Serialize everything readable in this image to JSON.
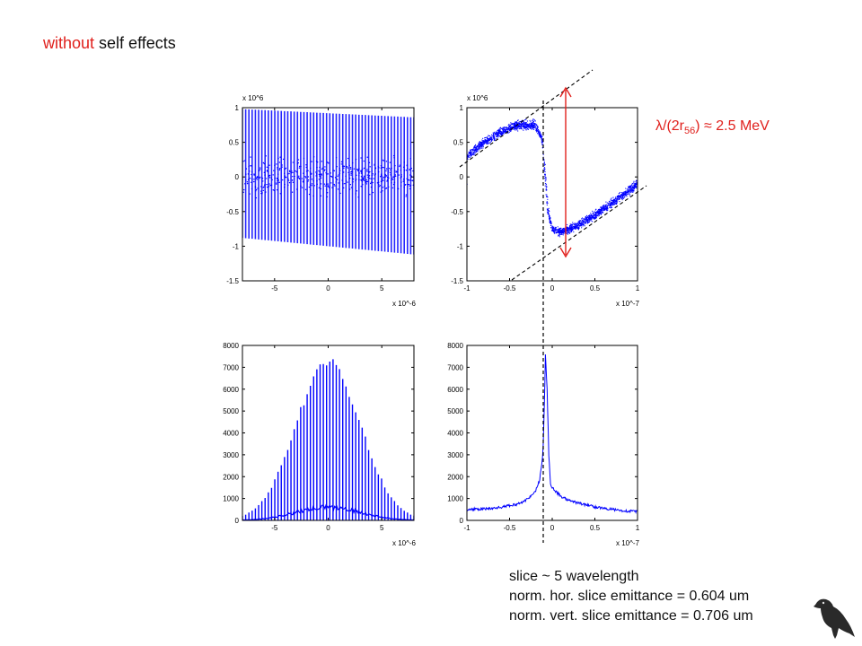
{
  "title": {
    "prefix": "without",
    "rest": " self effects"
  },
  "annotation": {
    "text_a": "λ/(2r",
    "sub": "56",
    "text_b": ") ≈ 2.5 MeV"
  },
  "notes": [
    "slice ~ 5 wavelength",
    "norm. hor. slice emittance = 0.604 um",
    "norm. vert. slice emittance = 0.706 um"
  ],
  "colors": {
    "accent": "#e0211d",
    "series": "#0000ff",
    "axes": "#000000"
  },
  "icon": "crow-icon",
  "chart_data": [
    {
      "type": "scatter",
      "description_id": "top-left",
      "xlim": [
        -8,
        8
      ],
      "x_multiplier": "x 10^-6",
      "ylim": [
        -1.5,
        1.0
      ],
      "y_multiplier": "x 10^6",
      "xticks": [
        "-5",
        "0",
        "5"
      ],
      "yticks": [
        "1",
        "0.5",
        "0",
        "-0.5",
        "-1",
        "-1.5"
      ],
      "xtick_vals": [
        -5,
        0,
        5
      ],
      "ytick_vals": [
        1,
        0.5,
        0,
        -0.5,
        -1,
        -1.5
      ],
      "series": [
        {
          "comb_lines": 54,
          "top_start": 0.98,
          "top_end": 0.86,
          "bottom_start": -0.88,
          "bottom_end": -1.12
        }
      ]
    },
    {
      "type": "scatter",
      "description_id": "top-right",
      "xlim": [
        -1,
        1
      ],
      "x_multiplier": "x 10^-7",
      "ylim": [
        -1.5,
        1.0
      ],
      "y_multiplier": "x 10^6",
      "xticks": [
        "-1",
        "-0.5",
        "0",
        "0.5",
        "1"
      ],
      "yticks": [
        "1",
        "0.5",
        "0",
        "-0.5",
        "-1",
        "-1.5"
      ],
      "xtick_vals": [
        -1,
        -0.5,
        0,
        0.5,
        1
      ],
      "ytick_vals": [
        1,
        0.5,
        0,
        -0.5,
        -1,
        -1.5
      ],
      "points": [
        [
          -1.0,
          0.3
        ],
        [
          -0.8,
          0.5
        ],
        [
          -0.6,
          0.65
        ],
        [
          -0.4,
          0.75
        ],
        [
          -0.2,
          0.75
        ],
        [
          -0.12,
          0.55
        ],
        [
          -0.08,
          0.0
        ],
        [
          -0.05,
          -0.5
        ],
        [
          0.0,
          -0.75
        ],
        [
          0.1,
          -0.8
        ],
        [
          0.3,
          -0.7
        ],
        [
          0.5,
          -0.55
        ],
        [
          0.7,
          -0.38
        ],
        [
          0.9,
          -0.2
        ],
        [
          1.0,
          -0.1
        ]
      ]
    },
    {
      "type": "line",
      "description_id": "bottom-left",
      "xlim": [
        -8,
        8
      ],
      "x_multiplier": "x 10^-6",
      "ylim": [
        0,
        8000
      ],
      "xticks": [
        "-5",
        "0",
        "5"
      ],
      "yticks": [
        "8000",
        "7000",
        "6000",
        "5000",
        "4000",
        "3000",
        "2000",
        "1000",
        "0"
      ],
      "xtick_vals": [
        -5,
        0,
        5
      ],
      "ytick_vals": [
        8000,
        7000,
        6000,
        5000,
        4000,
        3000,
        2000,
        1000,
        0
      ],
      "series": [
        {
          "comb_lines": 54,
          "peak": 7600,
          "sigma": 3.0,
          "floor_peak": 600
        }
      ]
    },
    {
      "type": "line",
      "description_id": "bottom-right",
      "xlim": [
        -1,
        1
      ],
      "x_multiplier": "x 10^-7",
      "ylim": [
        0,
        8000
      ],
      "xticks": [
        "-1",
        "-0.5",
        "0",
        "0.5",
        "1"
      ],
      "yticks": [
        "8000",
        "7000",
        "6000",
        "5000",
        "4000",
        "3000",
        "2000",
        "1000",
        "0"
      ],
      "xtick_vals": [
        -1,
        -0.5,
        0,
        0.5,
        1
      ],
      "ytick_vals": [
        8000,
        7000,
        6000,
        5000,
        4000,
        3000,
        2000,
        1000,
        0
      ],
      "points": [
        [
          -1.0,
          500
        ],
        [
          -0.8,
          520
        ],
        [
          -0.6,
          600
        ],
        [
          -0.4,
          750
        ],
        [
          -0.3,
          950
        ],
        [
          -0.2,
          1300
        ],
        [
          -0.15,
          1800
        ],
        [
          -0.11,
          3000
        ],
        [
          -0.09,
          5500
        ],
        [
          -0.08,
          7600
        ],
        [
          -0.06,
          6000
        ],
        [
          -0.04,
          3000
        ],
        [
          -0.02,
          1700
        ],
        [
          0.0,
          1500
        ],
        [
          0.05,
          1300
        ],
        [
          0.1,
          1100
        ],
        [
          0.2,
          900
        ],
        [
          0.4,
          700
        ],
        [
          0.6,
          550
        ],
        [
          0.8,
          450
        ],
        [
          1.0,
          400
        ]
      ]
    }
  ]
}
